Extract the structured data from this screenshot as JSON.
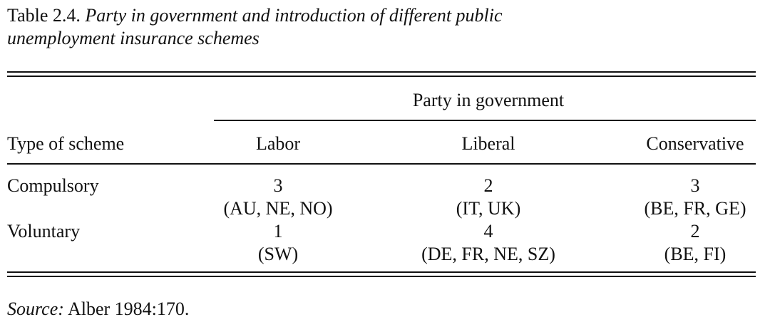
{
  "table": {
    "number": "Table 2.4.",
    "title_line1": "Party in government and introduction of different public",
    "title_line2": "unemployment insurance schemes",
    "spanner": "Party in government",
    "headers": {
      "row_label": "Type of scheme",
      "col1": "Labor",
      "col2": "Liberal",
      "col3": "Conservative"
    },
    "rows": [
      {
        "label": "Compulsory",
        "cells": [
          {
            "count": "3",
            "countries": "(AU, NE, NO)"
          },
          {
            "count": "2",
            "countries": "(IT, UK)"
          },
          {
            "count": "3",
            "countries": "(BE, FR, GE)"
          }
        ]
      },
      {
        "label": "Voluntary",
        "cells": [
          {
            "count": "1",
            "countries": "(SW)"
          },
          {
            "count": "4",
            "countries": "(DE, FR, NE, SZ)"
          },
          {
            "count": "2",
            "countries": "(BE, FI)"
          }
        ]
      }
    ],
    "source_label": "Source:",
    "source_text": " Alber 1984:170."
  }
}
